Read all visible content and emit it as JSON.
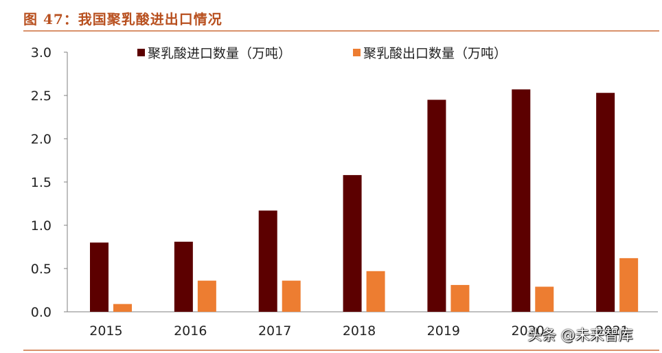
{
  "figure": {
    "title": "图 47：我国聚乳酸进出口情况"
  },
  "watermark": "头条 @未来智库",
  "chart_data": {
    "type": "bar",
    "categories": [
      "2015",
      "2016",
      "2017",
      "2018",
      "2019",
      "2020",
      "2021"
    ],
    "series": [
      {
        "name": "聚乳酸进口数量（万吨）",
        "color": "#5c0000",
        "values": [
          0.8,
          0.81,
          1.17,
          1.58,
          2.45,
          2.57,
          2.53
        ]
      },
      {
        "name": "聚乳酸出口数量（万吨）",
        "color": "#ed7d31",
        "values": [
          0.09,
          0.36,
          0.36,
          0.47,
          0.31,
          0.29,
          0.62
        ]
      }
    ],
    "yticks": [
      "0.0",
      "0.5",
      "1.0",
      "1.5",
      "2.0",
      "2.5",
      "3.0"
    ],
    "ylim": [
      0,
      3.0
    ],
    "xlabel": "",
    "ylabel": "",
    "grid": false,
    "legend": "top"
  }
}
